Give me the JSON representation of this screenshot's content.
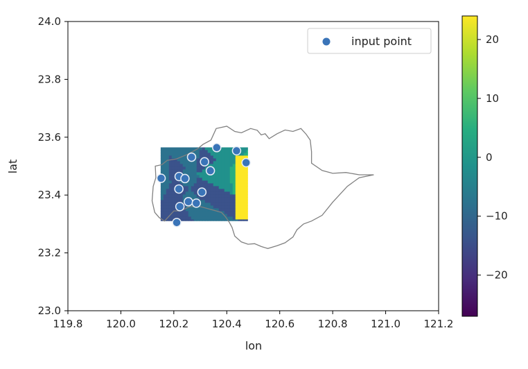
{
  "chart_data": {
    "type": "scatter",
    "title": "",
    "xlabel": "lon",
    "ylabel": "lat",
    "xlim": [
      119.8,
      121.2
    ],
    "ylim": [
      23.0,
      24.0
    ],
    "xticks": [
      "119.8",
      "120.0",
      "120.2",
      "120.4",
      "120.6",
      "120.8",
      "121.0",
      "121.2"
    ],
    "yticks": [
      "23.0",
      "23.2",
      "23.4",
      "23.6",
      "23.8",
      "24.0"
    ],
    "legend": {
      "label": "input point",
      "placement": "top-right"
    },
    "grid": false,
    "series": [
      {
        "name": "input point",
        "color": "#3a74b8",
        "points": [
          {
            "x": 120.362,
            "y": 23.564
          },
          {
            "x": 120.437,
            "y": 23.553
          },
          {
            "x": 120.473,
            "y": 23.512
          },
          {
            "x": 120.267,
            "y": 23.531
          },
          {
            "x": 120.316,
            "y": 23.515
          },
          {
            "x": 120.338,
            "y": 23.484
          },
          {
            "x": 120.152,
            "y": 23.458
          },
          {
            "x": 120.22,
            "y": 23.464
          },
          {
            "x": 120.242,
            "y": 23.457
          },
          {
            "x": 120.219,
            "y": 23.421
          },
          {
            "x": 120.306,
            "y": 23.41
          },
          {
            "x": 120.255,
            "y": 23.377
          },
          {
            "x": 120.285,
            "y": 23.372
          },
          {
            "x": 120.223,
            "y": 23.36
          },
          {
            "x": 120.211,
            "y": 23.305
          }
        ]
      }
    ],
    "heatmap": {
      "colormap": "viridis",
      "x_range": [
        120.15,
        120.48
      ],
      "y_range": [
        23.31,
        23.565
      ]
    },
    "colorbar": {
      "range": [
        -27,
        24
      ],
      "ticks": [
        "20",
        "10",
        "0",
        "−10",
        "−20"
      ]
    },
    "boundary_outline": {
      "color": "#808080",
      "points": [
        [
          120.155,
          23.505
        ],
        [
          120.175,
          23.52
        ],
        [
          120.21,
          23.525
        ],
        [
          120.25,
          23.54
        ],
        [
          120.29,
          23.56
        ],
        [
          120.31,
          23.575
        ],
        [
          120.34,
          23.59
        ],
        [
          120.36,
          23.63
        ],
        [
          120.4,
          23.638
        ],
        [
          120.43,
          23.62
        ],
        [
          120.455,
          23.615
        ],
        [
          120.49,
          23.63
        ],
        [
          120.515,
          23.624
        ],
        [
          120.53,
          23.608
        ],
        [
          120.545,
          23.612
        ],
        [
          120.56,
          23.595
        ],
        [
          120.59,
          23.612
        ],
        [
          120.62,
          23.625
        ],
        [
          120.65,
          23.62
        ],
        [
          120.68,
          23.63
        ],
        [
          120.7,
          23.61
        ],
        [
          120.715,
          23.59
        ],
        [
          120.72,
          23.55
        ],
        [
          120.72,
          23.51
        ],
        [
          120.76,
          23.485
        ],
        [
          120.8,
          23.475
        ],
        [
          120.85,
          23.478
        ],
        [
          120.9,
          23.47
        ],
        [
          120.955,
          23.47
        ],
        [
          120.9,
          23.46
        ],
        [
          120.855,
          23.43
        ],
        [
          120.8,
          23.375
        ],
        [
          120.76,
          23.33
        ],
        [
          120.72,
          23.31
        ],
        [
          120.69,
          23.3
        ],
        [
          120.665,
          23.28
        ],
        [
          120.65,
          23.255
        ],
        [
          120.62,
          23.235
        ],
        [
          120.59,
          23.225
        ],
        [
          120.555,
          23.215
        ],
        [
          120.53,
          23.222
        ],
        [
          120.505,
          23.232
        ],
        [
          120.48,
          23.23
        ],
        [
          120.455,
          23.238
        ],
        [
          120.43,
          23.258
        ],
        [
          120.42,
          23.288
        ],
        [
          120.41,
          23.305
        ],
        [
          120.395,
          23.325
        ],
        [
          120.38,
          23.34
        ],
        [
          120.34,
          23.35
        ],
        [
          120.3,
          23.36
        ],
        [
          120.26,
          23.36
        ],
        [
          120.225,
          23.345
        ],
        [
          120.2,
          23.345
        ],
        [
          120.18,
          23.325
        ],
        [
          120.165,
          23.31
        ],
        [
          120.145,
          23.322
        ],
        [
          120.128,
          23.34
        ],
        [
          120.118,
          23.38
        ],
        [
          120.122,
          23.43
        ],
        [
          120.132,
          23.46
        ],
        [
          120.13,
          23.5
        ],
        [
          120.155,
          23.505
        ]
      ]
    }
  }
}
